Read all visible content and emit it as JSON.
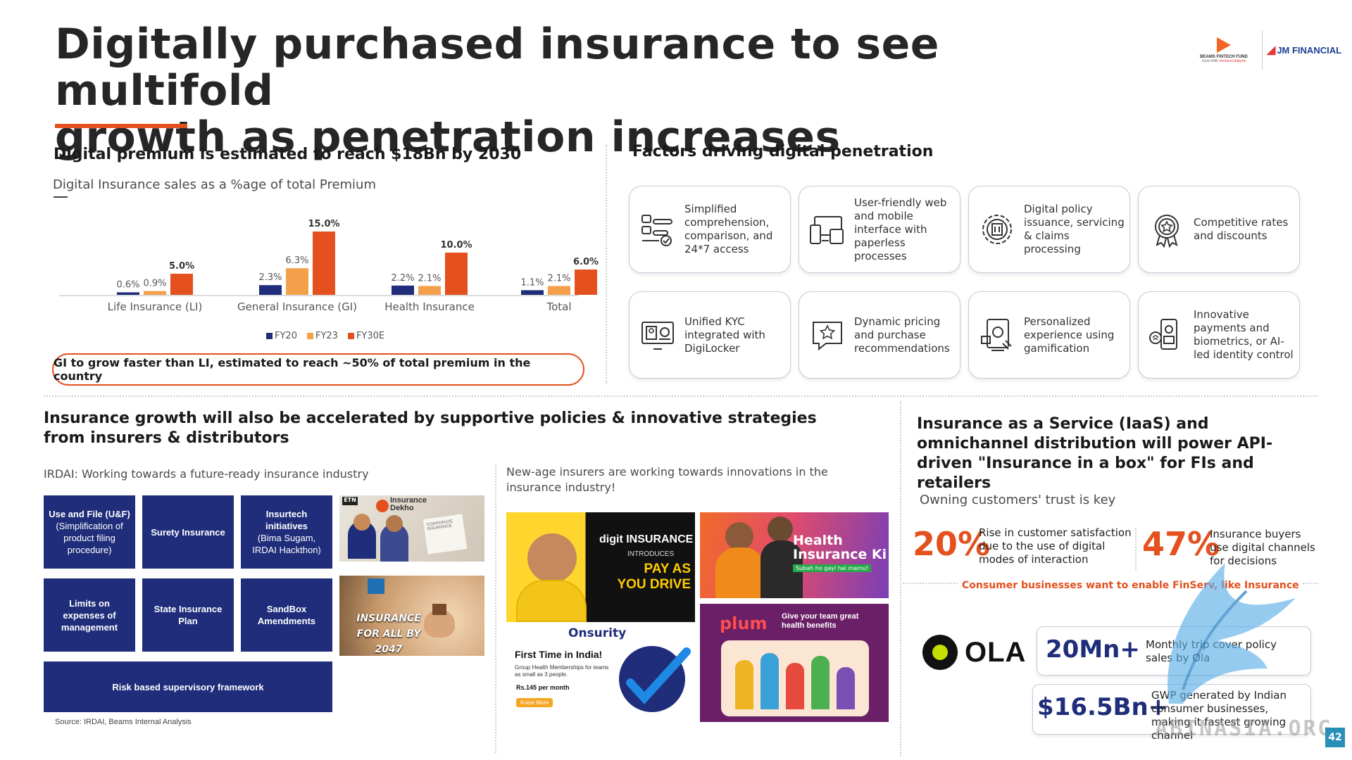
{
  "header": {
    "title_line1": "Digitally purchased insurance to see multifold",
    "title_line2": "growth as penetration increases",
    "logo_beams_line1": "BEAMS FINTECH FUND",
    "logo_beams_line2": "Grow With",
    "logo_beams_line3": "VentureCatalysts",
    "logo_jm": "JM FINANCIAL"
  },
  "premium_section": {
    "title": "Digital premium is estimated to reach $18Bn by 2030",
    "subtitle": "Digital Insurance sales as a %age of total Premium",
    "callout": "GI to grow faster than LI, estimated to reach ~50% of total premium in the country"
  },
  "chart_data": {
    "type": "bar",
    "categories": [
      "Life Insurance (LI)",
      "General Insurance (GI)",
      "Health Insurance",
      "Total"
    ],
    "series": [
      {
        "name": "FY20",
        "values": [
          0.6,
          2.3,
          2.2,
          1.1
        ],
        "labels": [
          "0.6%",
          "2.3%",
          "2.2%",
          "1.1%"
        ],
        "color": "#1f2d7a"
      },
      {
        "name": "FY23",
        "values": [
          0.9,
          6.3,
          2.1,
          2.1
        ],
        "labels": [
          "0.9%",
          "6.3%",
          "2.1%",
          "2.1%"
        ],
        "color": "#f4a04a"
      },
      {
        "name": "FY30E",
        "values": [
          5.0,
          15.0,
          10.0,
          6.0
        ],
        "labels": [
          "5.0%",
          "15.0%",
          "10.0%",
          "6.0%"
        ],
        "color": "#e4501e"
      }
    ],
    "ylim": [
      0,
      15
    ]
  },
  "factors": {
    "title": "Factors driving digital penetration",
    "cards": [
      {
        "label": "Simplified comprehension, comparison, and 24*7 access",
        "icon": "compare-icon"
      },
      {
        "label": "User-friendly web and mobile interface with paperless processes",
        "icon": "devices-icon"
      },
      {
        "label": "Digital policy issuance, servicing & claims processing",
        "icon": "gear-building-icon"
      },
      {
        "label": "Competitive rates and discounts",
        "icon": "badge-icon"
      },
      {
        "label": "Unified KYC integrated with DigiLocker",
        "icon": "kyc-icon"
      },
      {
        "label": "Dynamic pricing and purchase recommendations",
        "icon": "star-chat-icon"
      },
      {
        "label": "Personalized experience using gamification",
        "icon": "gamification-icon"
      },
      {
        "label": "Innovative payments and biometrics, or AI-led identity control",
        "icon": "biometric-icon"
      }
    ]
  },
  "policies_section": {
    "title": "Insurance growth will also be accelerated by supportive policies & innovative strategies from insurers & distributors",
    "irdai_subtitle": "IRDAI: Working towards a future-ready insurance industry",
    "boxes": {
      "uf_title": "Use and File (U&F)",
      "uf_desc": "(Simplification of product filing procedure)",
      "surety": "Surety Insurance",
      "insurtech_title": "Insurtech initiatives",
      "insurtech_desc": "(Bima Sugam, IRDAI Hackthon)",
      "limits": "Limits on expenses of management",
      "state": "State Insurance Plan",
      "sandbox": "SandBox Amendments",
      "risk": "Risk based supervisory framework"
    },
    "img_dekho_brand": "Insurance Dekho",
    "img_dekho_tag": "ETN",
    "img_dekho_doc": "CORPORATE INSURANCE",
    "img_all_text": "INSURANCE FOR ALL BY 2047",
    "source": "Source: IRDAI, Beams Internal Analysis",
    "newage_subtitle": "New-age insurers are working towards innovations in the insurance industry!",
    "digit_brand": "digit INSURANCE",
    "digit_intro": "INTRODUCES",
    "digit_pay1": "PAY AS",
    "digit_pay2": "YOU DRIVE",
    "health_title1": "Health",
    "health_title2": "Insurance Ki",
    "health_tag": "Subah ho gayi hai mamu!",
    "onsurity_brand": "Onsurity",
    "onsurity_headline": "First Time in India!",
    "onsurity_desc": "Group Health Memberships for teams as small as 3 people.",
    "onsurity_price": "Rs.145 per month",
    "onsurity_cta": "Know More",
    "plum_brand": "plum",
    "plum_tag": "Give your team great health benefits"
  },
  "iaas_section": {
    "title": "Insurance as a Service (IaaS) and omnichannel distribution will power API-driven \"Insurance in a box\" for FIs and retailers",
    "trust_subtitle": "Owning customers' trust is key",
    "stat1_value": "20%",
    "stat1_text": "Rise in customer satisfaction due to the use of digital modes of interaction",
    "stat2_value": "47%",
    "stat2_text": "Insurance buyers use digital channels for decisions",
    "finserv_note": "Consumer businesses want to enable FinServ, like Insurance",
    "ola_brand": "OLA",
    "ola_value": "20Mn+",
    "ola_text": "Monthly trip cover policy sales by Ola",
    "gwp_value": "$16.5Bn+",
    "gwp_text": "GWP generated by Indian consumer businesses, making it fastest growing channel"
  },
  "page_number": "42",
  "watermark": "ABINASIA.ORG"
}
